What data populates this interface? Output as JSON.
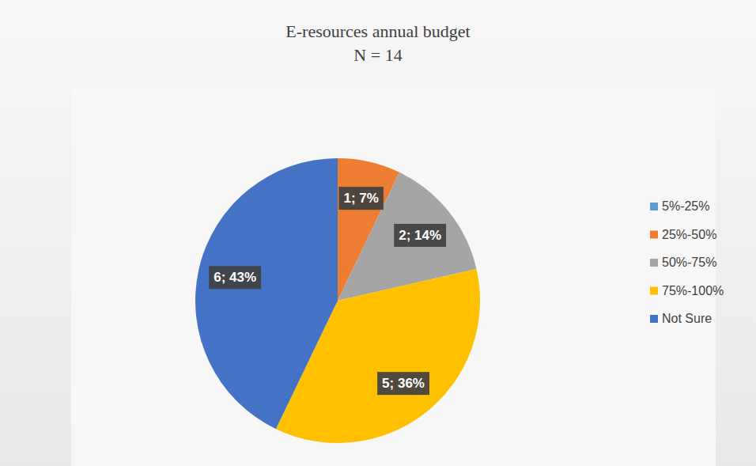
{
  "chart_data": {
    "type": "pie",
    "title": "E-resources annual budget",
    "subtitle": "N = 14",
    "categories": [
      "5%-25%",
      "25%-50%",
      "50%-75%",
      "75%-100%",
      "Not Sure"
    ],
    "values": [
      0,
      1,
      2,
      5,
      6
    ],
    "value_labels": [
      null,
      "1; 7%",
      "2; 14%",
      "5; 36%",
      "6; 43%"
    ],
    "colors": [
      "#5b9bd5",
      "#ed7d31",
      "#a5a5a5",
      "#ffc000",
      "#4472c4"
    ],
    "legend": "right",
    "data_labels": true
  }
}
